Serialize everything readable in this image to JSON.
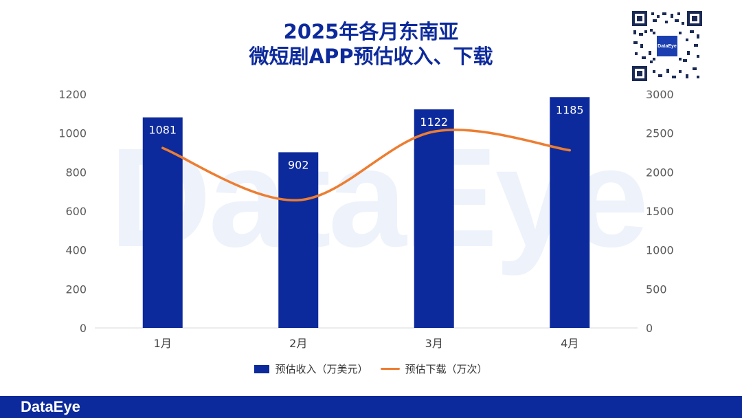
{
  "title_line1": "2025年各月东南亚",
  "title_line2": "微短剧APP预估收入、下载",
  "watermark": "DataEye",
  "footer_logo": "DataEye",
  "qr_label": "DataEye",
  "colors": {
    "bar": "#0d2a9c",
    "line": "#ed7d31",
    "title": "#0d2a9c"
  },
  "chart_data": {
    "type": "bar",
    "categories": [
      "1月",
      "2月",
      "3月",
      "4月"
    ],
    "series": [
      {
        "name": "预估收入（万美元）",
        "type": "bar",
        "axis": "left",
        "values": [
          1081,
          902,
          1122,
          1185
        ]
      },
      {
        "name": "预估下载（万次）",
        "type": "line",
        "axis": "right",
        "smooth": true,
        "values": [
          2310,
          1640,
          2520,
          2280
        ]
      }
    ],
    "y_left": {
      "min": 0,
      "max": 1200,
      "ticks": [
        0,
        200,
        400,
        600,
        800,
        1000,
        1200
      ]
    },
    "y_right": {
      "min": 0,
      "max": 3000,
      "ticks": [
        0,
        500,
        1000,
        1500,
        2000,
        2500,
        3000
      ]
    },
    "data_labels": true,
    "grid": false,
    "legend_position": "bottom"
  }
}
